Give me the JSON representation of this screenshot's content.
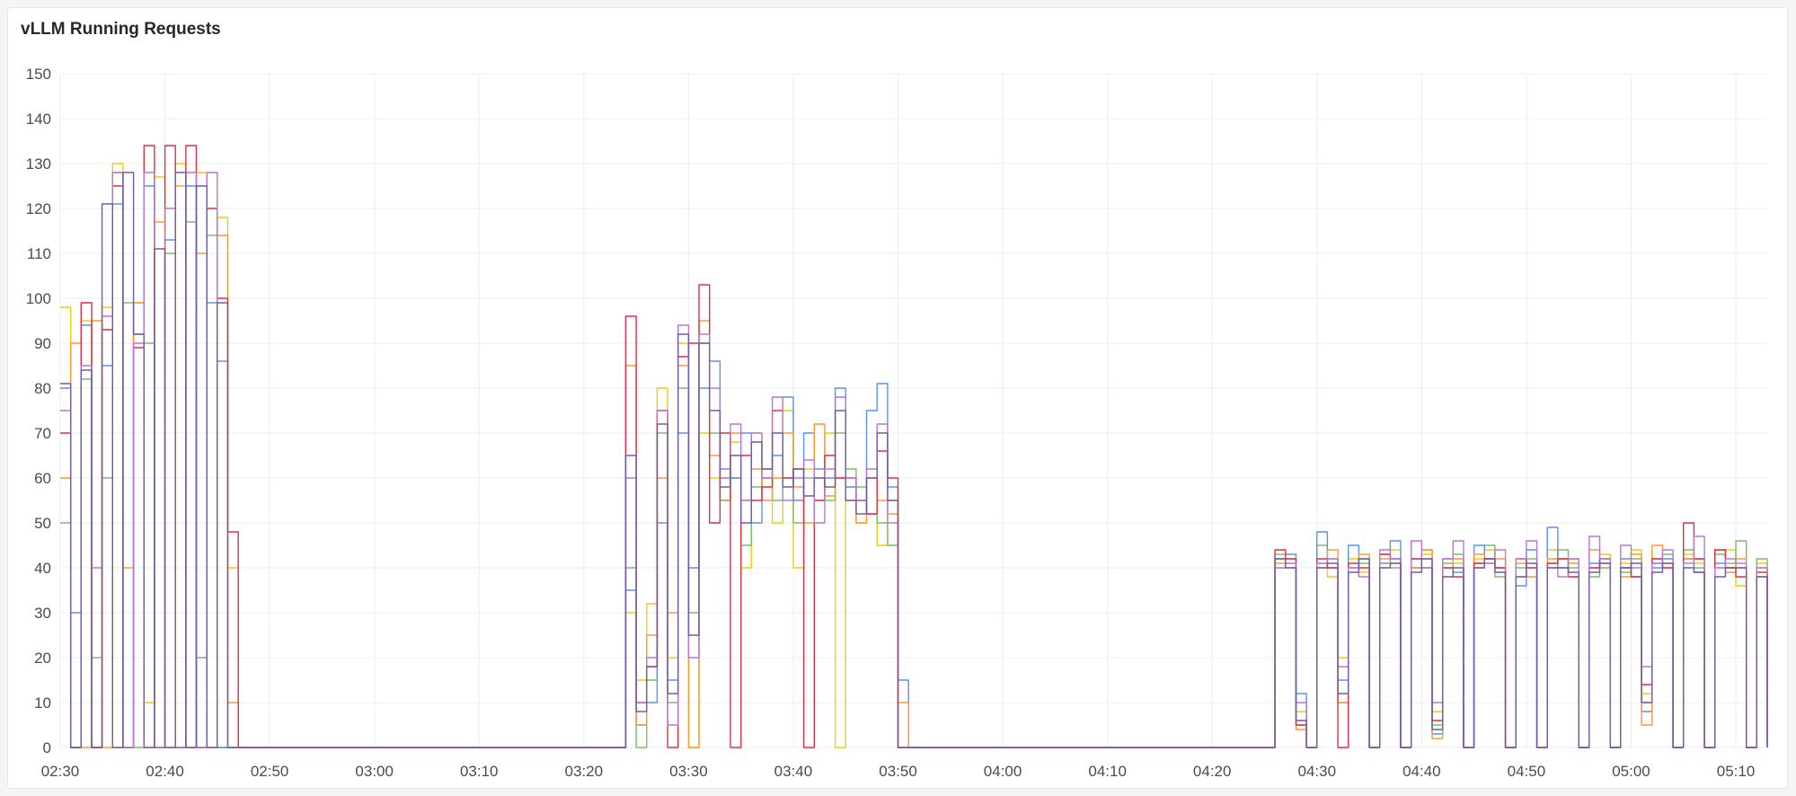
{
  "panel": {
    "title": "vLLM Running Requests"
  },
  "chart_data": {
    "type": "line",
    "title": "vLLM Running Requests",
    "xlabel": "",
    "ylabel": "",
    "line_style": "step",
    "grid": true,
    "legend": "none",
    "ylim": [
      0,
      150
    ],
    "yticks": [
      "0",
      "10",
      "20",
      "30",
      "40",
      "50",
      "60",
      "70",
      "80",
      "90",
      "100",
      "110",
      "120",
      "130",
      "140",
      "150"
    ],
    "xlim": [
      "02:30",
      "05:13"
    ],
    "xticks": [
      "02:30",
      "02:40",
      "02:50",
      "03:00",
      "03:10",
      "03:20",
      "03:30",
      "03:40",
      "03:50",
      "04:00",
      "04:10",
      "04:20",
      "04:30",
      "04:40",
      "04:50",
      "05:00",
      "05:10"
    ],
    "sampling_interval_minutes": 1,
    "default_value": 0,
    "series": [
      {
        "color": "#F2CC0C",
        "segments": [
          {
            "start": "02:30",
            "values": [
              98,
              0,
              95,
              0,
              98,
              130,
              0,
              99,
              10,
              127,
              0,
              130,
              0,
              128,
              0,
              118,
              40,
              0
            ]
          },
          {
            "start": "03:23",
            "values": [
              0,
              30,
              15,
              32,
              80,
              20,
              90,
              0,
              70,
              60,
              55,
              68,
              40,
              70,
              60,
              50,
              75,
              40,
              62,
              55,
              70,
              0,
              58,
              50,
              60,
              45,
              55,
              0,
              0
            ]
          },
          {
            "start": "04:25",
            "values": [
              0,
              40,
              41,
              8,
              0,
              41,
              38,
              20,
              42,
              39,
              0,
              40,
              44,
              0,
              40,
              43,
              8,
              38,
              41,
              0,
              42,
              44,
              40,
              0,
              38,
              40,
              0,
              44,
              42,
              38,
              0,
              40,
              43,
              0,
              41,
              44,
              12,
              42,
              40,
              0,
              43,
              41,
              0,
              40,
              44,
              36,
              0,
              41,
              0
            ]
          }
        ]
      },
      {
        "color": "#73BF69",
        "segments": [
          {
            "start": "02:30",
            "values": [
              50,
              0,
              82,
              20,
              60,
              0,
              99,
              0,
              90,
              0,
              110,
              0,
              117,
              20,
              114,
              0,
              0,
              0
            ]
          },
          {
            "start": "03:23",
            "values": [
              0,
              40,
              0,
              15,
              70,
              10,
              80,
              30,
              90,
              70,
              55,
              60,
              45,
              58,
              62,
              55,
              60,
              50,
              60,
              60,
              55,
              70,
              62,
              58,
              52,
              50,
              45,
              0,
              0
            ]
          },
          {
            "start": "04:25",
            "values": [
              0,
              43,
              40,
              5,
              0,
              45,
              42,
              10,
              40,
              41,
              0,
              43,
              40,
              0,
              42,
              44,
              5,
              41,
              43,
              0,
              41,
              45,
              38,
              0,
              40,
              42,
              0,
              41,
              44,
              40,
              0,
              38,
              41,
              0,
              39,
              42,
              10,
              41,
              43,
              0,
              44,
              40,
              0,
              43,
              41,
              46,
              0,
              42,
              0
            ]
          }
        ]
      },
      {
        "color": "#5794F2",
        "segments": [
          {
            "start": "02:30",
            "values": [
              80,
              30,
              94,
              0,
              85,
              121,
              0,
              92,
              125,
              0,
              113,
              0,
              125,
              0,
              99,
              0,
              0,
              0
            ]
          },
          {
            "start": "03:23",
            "values": [
              0,
              35,
              5,
              10,
              50,
              15,
              70,
              40,
              80,
              86,
              62,
              60,
              70,
              50,
              60,
              65,
              78,
              55,
              70,
              62,
              60,
              80,
              58,
              55,
              75,
              81,
              58,
              15,
              0
            ]
          },
          {
            "start": "04:25",
            "values": [
              0,
              42,
              43,
              12,
              0,
              48,
              40,
              15,
              45,
              42,
              0,
              41,
              46,
              0,
              40,
              42,
              3,
              42,
              39,
              0,
              45,
              42,
              40,
              0,
              36,
              44,
              0,
              49,
              40,
              42,
              0,
              41,
              40,
              0,
              42,
              38,
              8,
              40,
              42,
              0,
              42,
              39,
              0,
              41,
              40,
              40,
              0,
              38,
              0
            ]
          }
        ]
      },
      {
        "color": "#FF9830",
        "segments": [
          {
            "start": "02:30",
            "values": [
              60,
              90,
              0,
              95,
              0,
              128,
              40,
              99,
              0,
              117,
              0,
              125,
              0,
              110,
              0,
              114,
              10,
              0
            ]
          },
          {
            "start": "03:23",
            "values": [
              0,
              85,
              5,
              25,
              60,
              30,
              85,
              0,
              95,
              65,
              60,
              70,
              55,
              62,
              55,
              60,
              70,
              58,
              50,
              72,
              56,
              60,
              55,
              50,
              60,
              55,
              52,
              10,
              0
            ]
          },
          {
            "start": "04:25",
            "values": [
              0,
              41,
              42,
              4,
              0,
              40,
              44,
              10,
              40,
              43,
              0,
              42,
              41,
              0,
              40,
              44,
              2,
              40,
              42,
              0,
              43,
              41,
              42,
              0,
              41,
              38,
              0,
              42,
              42,
              41,
              0,
              44,
              40,
              0,
              38,
              43,
              5,
              45,
              41,
              0,
              42,
              42,
              0,
              44,
              39,
              42,
              0,
              40,
              0
            ]
          }
        ]
      },
      {
        "color": "#E02F44",
        "segments": [
          {
            "start": "02:30",
            "values": [
              70,
              0,
              99,
              0,
              93,
              125,
              0,
              89,
              134,
              0,
              134,
              0,
              134,
              0,
              120,
              100,
              48,
              0
            ]
          },
          {
            "start": "03:23",
            "values": [
              0,
              96,
              10,
              18,
              75,
              0,
              87,
              90,
              103,
              50,
              70,
              0,
              65,
              55,
              58,
              75,
              60,
              62,
              0,
              55,
              65,
              60,
              60,
              55,
              52,
              66,
              60,
              0,
              0
            ]
          },
          {
            "start": "04:25",
            "values": [
              0,
              44,
              42,
              5,
              0,
              42,
              40,
              0,
              41,
              40,
              0,
              43,
              42,
              0,
              42,
              40,
              6,
              40,
              38,
              0,
              41,
              42,
              40,
              0,
              42,
              40,
              0,
              41,
              42,
              38,
              0,
              40,
              42,
              0,
              40,
              38,
              14,
              42,
              40,
              0,
              50,
              42,
              0,
              44,
              40,
              38,
              0,
              39,
              0
            ]
          }
        ]
      },
      {
        "color": "#B877D9",
        "segments": [
          {
            "start": "02:30",
            "values": [
              75,
              0,
              85,
              40,
              96,
              128,
              0,
              90,
              128,
              0,
              120,
              0,
              128,
              0,
              128,
              86,
              0,
              0
            ]
          },
          {
            "start": "03:23",
            "values": [
              0,
              60,
              10,
              20,
              75,
              5,
              94,
              20,
              92,
              80,
              60,
              72,
              55,
              70,
              60,
              78,
              55,
              60,
              64,
              50,
              62,
              78,
              60,
              55,
              62,
              72,
              50,
              0,
              0
            ]
          },
          {
            "start": "04:25",
            "values": [
              0,
              40,
              41,
              10,
              0,
              41,
              42,
              18,
              40,
              38,
              0,
              44,
              42,
              0,
              46,
              40,
              10,
              42,
              46,
              0,
              40,
              41,
              44,
              0,
              42,
              46,
              0,
              40,
              38,
              42,
              0,
              47,
              42,
              0,
              45,
              40,
              18,
              41,
              44,
              0,
              41,
              47,
              0,
              40,
              42,
              41,
              0,
              40,
              0
            ]
          }
        ]
      },
      {
        "color": "#705DA0",
        "segments": [
          {
            "start": "02:30",
            "values": [
              81,
              0,
              84,
              0,
              121,
              0,
              128,
              92,
              0,
              111,
              0,
              128,
              0,
              125,
              0,
              99,
              0,
              0
            ]
          },
          {
            "start": "03:23",
            "values": [
              0,
              65,
              8,
              18,
              72,
              12,
              92,
              25,
              90,
              75,
              58,
              65,
              50,
              68,
              62,
              70,
              58,
              62,
              56,
              60,
              58,
              75,
              55,
              52,
              60,
              70,
              55,
              0,
              0
            ]
          },
          {
            "start": "04:25",
            "values": [
              0,
              42,
              40,
              6,
              0,
              40,
              41,
              12,
              39,
              42,
              0,
              40,
              41,
              0,
              39,
              42,
              4,
              38,
              40,
              0,
              40,
              42,
              39,
              0,
              38,
              41,
              0,
              40,
              40,
              39,
              0,
              39,
              41,
              0,
              40,
              41,
              10,
              39,
              41,
              0,
              40,
              39,
              0,
              38,
              40,
              40,
              0,
              38,
              0
            ]
          }
        ]
      }
    ]
  }
}
